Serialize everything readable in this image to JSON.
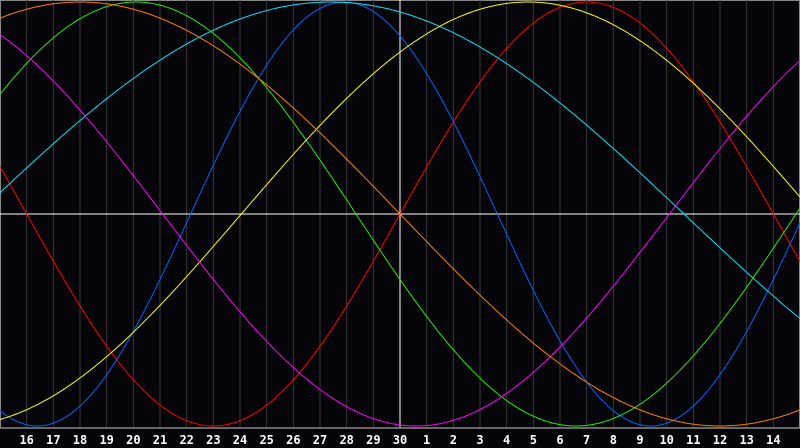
{
  "chart_data": {
    "type": "line",
    "categories": [
      "16",
      "17",
      "18",
      "19",
      "20",
      "21",
      "22",
      "23",
      "24",
      "25",
      "26",
      "27",
      "28",
      "29",
      "30",
      "1",
      "2",
      "3",
      "4",
      "5",
      "6",
      "7",
      "8",
      "9",
      "10",
      "11",
      "12",
      "13",
      "14"
    ],
    "highlighted_category": "30",
    "ylim": [
      -1,
      1
    ],
    "grid": true,
    "legend": "none",
    "background": "#050408",
    "series": [
      {
        "color": "#ff0000",
        "period_days": 28,
        "peak_category_index": 21.0
      },
      {
        "color": "#0066ff",
        "period_days": 23,
        "peak_category_index": 11.9
      },
      {
        "color": "#22ee00",
        "period_days": 33,
        "peak_category_index": 4.1
      },
      {
        "color": "#00e5ff",
        "period_days": 53,
        "peak_category_index": 11.4
      },
      {
        "color": "#ffff00",
        "period_days": 43,
        "peak_category_index": 18.8
      },
      {
        "color": "#ff00ff",
        "period_days": 38,
        "peak_category_index": -4.4
      },
      {
        "color": "#ff7f00",
        "period_days": 48,
        "peak_category_index": 2.0
      }
    ]
  }
}
